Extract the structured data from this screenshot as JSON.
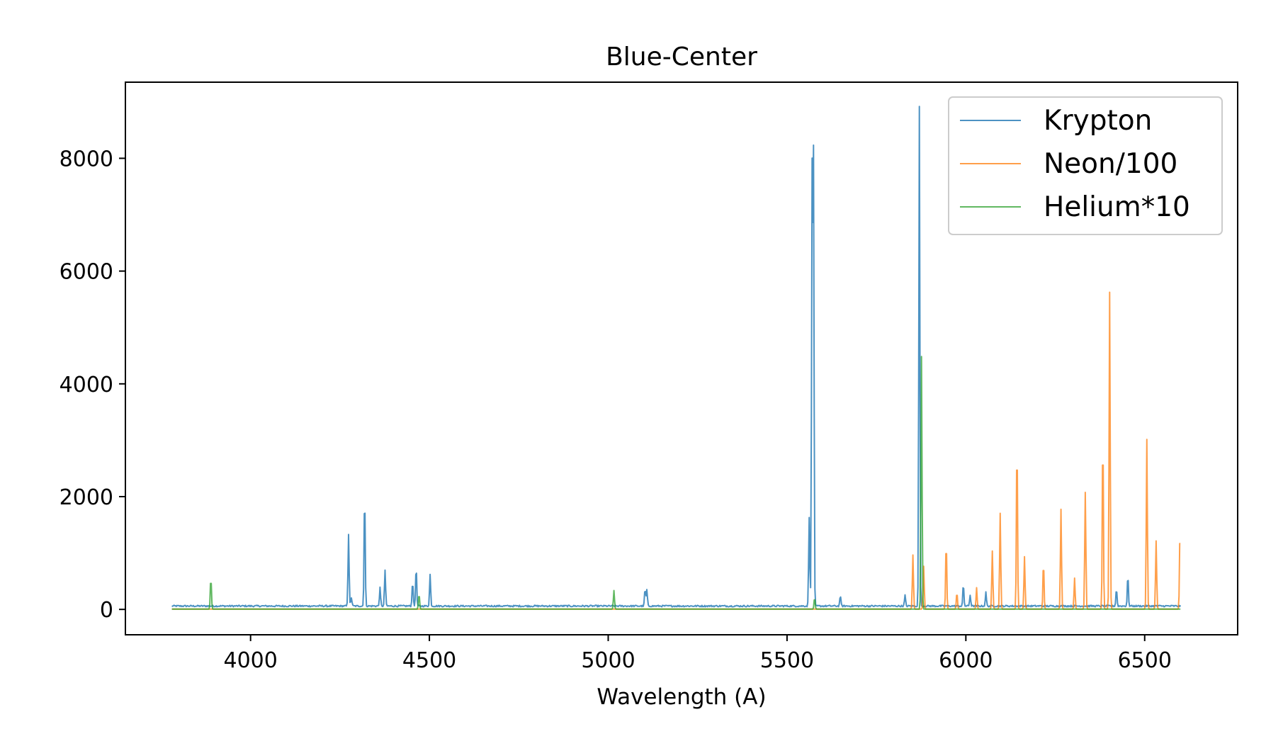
{
  "chart_data": {
    "type": "line",
    "title": "Blue-Center",
    "xlabel": "Wavelength (A)",
    "ylabel": "",
    "xlim": [
      3650,
      6760
    ],
    "ylim": [
      -450,
      9350
    ],
    "xticks": [
      4000,
      4500,
      5000,
      5500,
      6000,
      6500
    ],
    "yticks": [
      0,
      2000,
      4000,
      6000,
      8000
    ],
    "grid": false,
    "legend_position": "top-right",
    "x_range": [
      3780,
      6600
    ],
    "series": [
      {
        "name": "Krypton",
        "color": "#1f77b4",
        "opacity": 0.8,
        "baseline": 60,
        "noise": 28,
        "lines": [
          [
            4274,
            1280
          ],
          [
            4282,
            150
          ],
          [
            4319,
            2020
          ],
          [
            4362,
            320
          ],
          [
            4376,
            640
          ],
          [
            4453,
            440
          ],
          [
            4463,
            700
          ],
          [
            4502,
            560
          ],
          [
            5103,
            300
          ],
          [
            5108,
            290
          ],
          [
            5562,
            1560
          ],
          [
            5570,
            7650
          ],
          [
            5574,
            7900
          ],
          [
            5649,
            180
          ],
          [
            5830,
            190
          ],
          [
            5870,
            8850
          ],
          [
            5993,
            380
          ],
          [
            6012,
            200
          ],
          [
            6056,
            240
          ],
          [
            6421,
            310
          ],
          [
            6453,
            540
          ]
        ]
      },
      {
        "name": "Neon/100",
        "color": "#ff7f0e",
        "opacity": 0.75,
        "baseline": 5,
        "noise": 0,
        "lines": [
          [
            5852,
            960
          ],
          [
            5882,
            760
          ],
          [
            5945,
            1210
          ],
          [
            5975,
            300
          ],
          [
            6030,
            380
          ],
          [
            6074,
            1030
          ],
          [
            6096,
            1700
          ],
          [
            6143,
            3030
          ],
          [
            6164,
            930
          ],
          [
            6217,
            840
          ],
          [
            6266,
            1770
          ],
          [
            6304,
            550
          ],
          [
            6334,
            2070
          ],
          [
            6383,
            3140
          ],
          [
            6402,
            5620
          ],
          [
            6506,
            3010
          ],
          [
            6532,
            1210
          ],
          [
            6599,
            1430
          ]
        ]
      },
      {
        "name": "Helium*10",
        "color": "#2ca02c",
        "opacity": 0.75,
        "baseline": 5,
        "noise": 0,
        "lines": [
          [
            3889,
            560
          ],
          [
            4471,
            270
          ],
          [
            5016,
            330
          ],
          [
            5876,
            4480
          ],
          [
            5577,
            200
          ]
        ]
      }
    ]
  }
}
